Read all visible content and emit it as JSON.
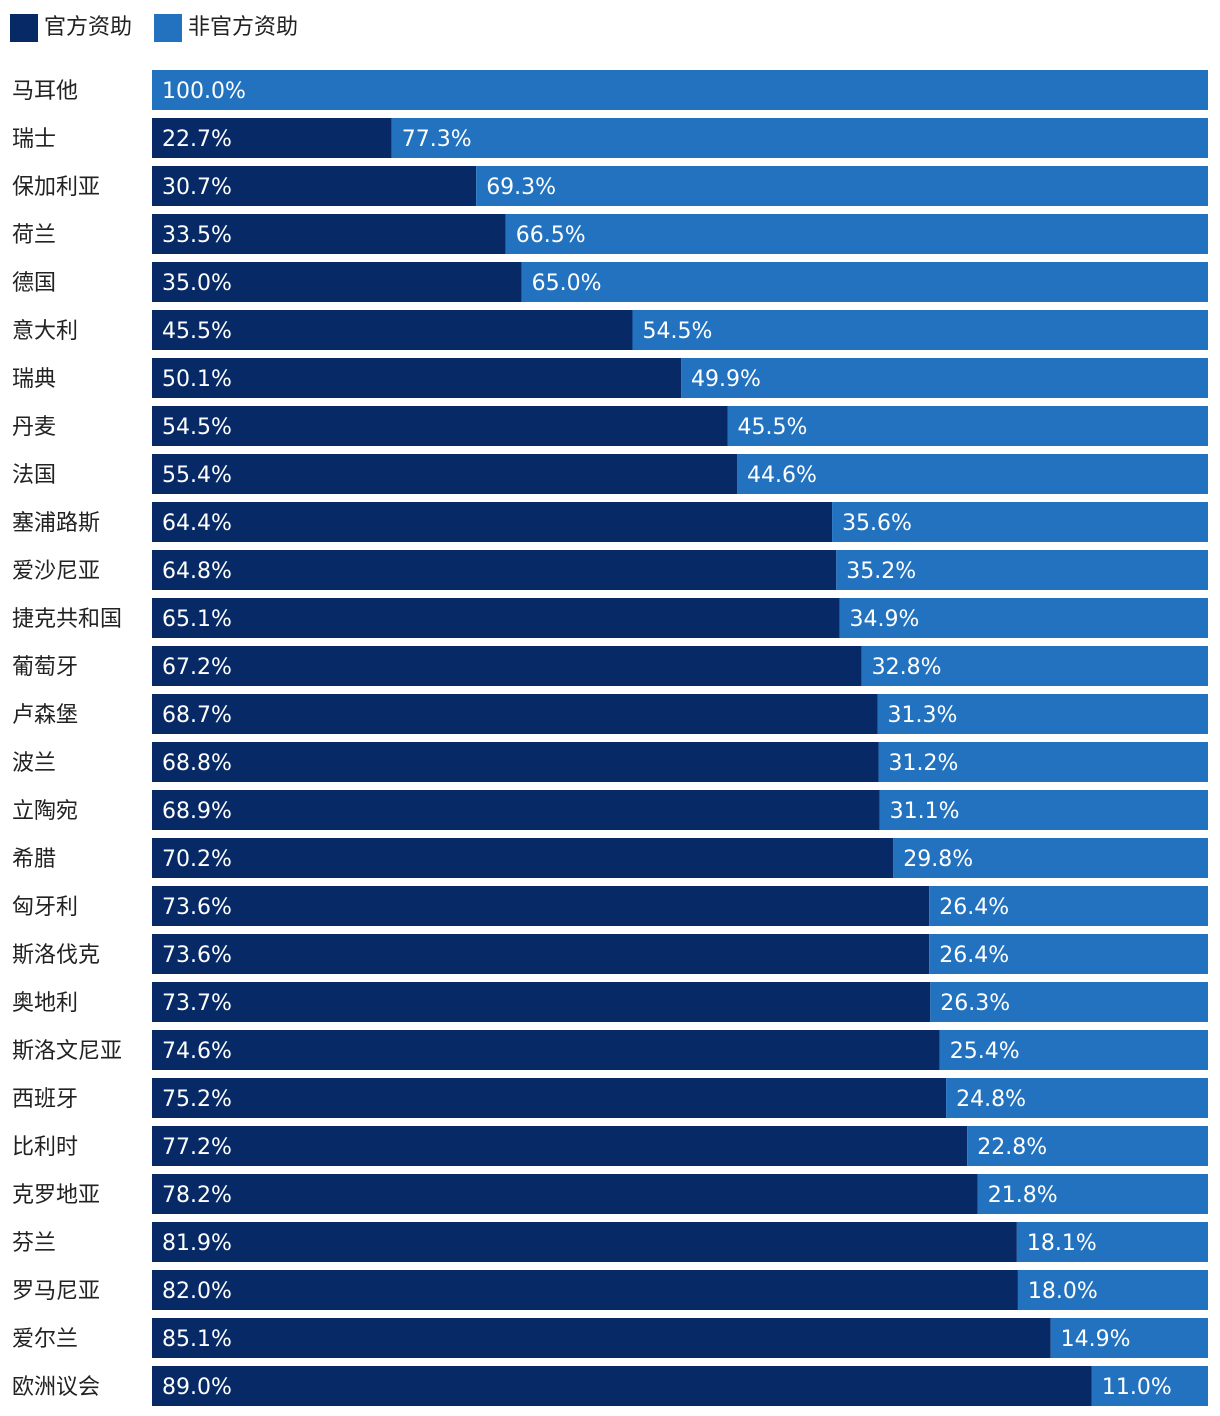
{
  "chart_data": {
    "type": "bar",
    "orientation": "horizontal",
    "stacked": true,
    "percent_stacked": true,
    "legend_position": "top-left",
    "series": [
      {
        "name": "官方资助",
        "color": "#072a66",
        "values": [
          0,
          22.7,
          30.7,
          33.5,
          35.0,
          45.5,
          50.1,
          54.5,
          55.4,
          64.4,
          64.8,
          65.1,
          67.2,
          68.7,
          68.8,
          68.9,
          70.2,
          73.6,
          73.6,
          73.7,
          74.6,
          75.2,
          77.2,
          78.2,
          81.9,
          82.0,
          85.1,
          89.0
        ],
        "labels": [
          "",
          "22.7%",
          "30.7%",
          "33.5%",
          "35.0%",
          "45.5%",
          "50.1%",
          "54.5%",
          "55.4%",
          "64.4%",
          "64.8%",
          "65.1%",
          "67.2%",
          "68.7%",
          "68.8%",
          "68.9%",
          "70.2%",
          "73.6%",
          "73.6%",
          "73.7%",
          "74.6%",
          "75.2%",
          "77.2%",
          "78.2%",
          "81.9%",
          "82.0%",
          "85.1%",
          "89.0%"
        ]
      },
      {
        "name": "非官方资助",
        "color": "#2272c0",
        "values": [
          100.0,
          77.3,
          69.3,
          66.5,
          65.0,
          54.5,
          49.9,
          45.5,
          44.6,
          35.6,
          35.2,
          34.9,
          32.8,
          31.3,
          31.2,
          31.1,
          29.8,
          26.4,
          26.4,
          26.3,
          25.4,
          24.8,
          22.8,
          21.8,
          18.1,
          18.0,
          14.9,
          11.0
        ],
        "labels": [
          "100.0%",
          "77.3%",
          "69.3%",
          "66.5%",
          "65.0%",
          "54.5%",
          "49.9%",
          "45.5%",
          "44.6%",
          "35.6%",
          "35.2%",
          "34.9%",
          "32.8%",
          "31.3%",
          "31.2%",
          "31.1%",
          "29.8%",
          "26.4%",
          "26.4%",
          "26.3%",
          "25.4%",
          "24.8%",
          "22.8%",
          "21.8%",
          "18.1%",
          "18.0%",
          "14.9%",
          "11.0%"
        ]
      }
    ],
    "categories": [
      "马耳他",
      "瑞士",
      "保加利亚",
      "荷兰",
      "德国",
      "意大利",
      "瑞典",
      "丹麦",
      "法国",
      "塞浦路斯",
      "爱沙尼亚",
      "捷克共和国",
      "葡萄牙",
      "卢森堡",
      "波兰",
      "立陶宛",
      "希腊",
      "匈牙利",
      "斯洛伐克",
      "奥地利",
      "斯洛文尼亚",
      "西班牙",
      "比利时",
      "克罗地亚",
      "芬兰",
      "罗马尼亚",
      "爱尔兰",
      "欧洲议会"
    ],
    "xlim": [
      0,
      100
    ],
    "title": "",
    "xlabel": "",
    "ylabel": "",
    "grid": false
  }
}
